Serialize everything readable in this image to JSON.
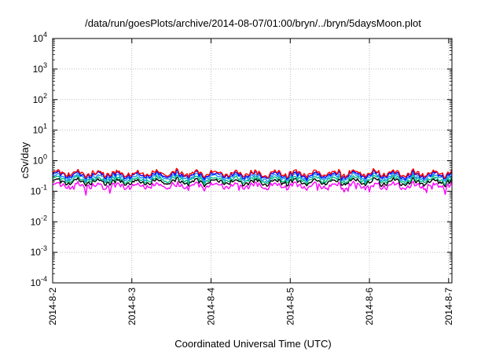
{
  "chart_data": {
    "type": "line",
    "title": "/data/run/goesPlots/archive/2014-08-07/01:00/bryn/../bryn/5daysMoon.plot",
    "xlabel": "Coordinated Universal Time (UTC)",
    "ylabel": "cSv/day",
    "y_scale": "log",
    "ylim": [
      0.0001,
      10000
    ],
    "y_ticks": [
      {
        "base": "10",
        "exp": "-4"
      },
      {
        "base": "10",
        "exp": "-3"
      },
      {
        "base": "10",
        "exp": "-2"
      },
      {
        "base": "10",
        "exp": "-1"
      },
      {
        "base": "10",
        "exp": "0"
      },
      {
        "base": "10",
        "exp": "1"
      },
      {
        "base": "10",
        "exp": "2"
      },
      {
        "base": "10",
        "exp": "3"
      },
      {
        "base": "10",
        "exp": "4"
      }
    ],
    "x_ticks": [
      "2014-8-2",
      "2014-8-3",
      "2014-8-4",
      "2014-8-5",
      "2014-8-6",
      "2014-8-7"
    ],
    "xlim": [
      "2014-08-02T00:00",
      "2014-08-07T01:00"
    ],
    "grid": true,
    "legend": "none",
    "series": [
      {
        "color": "#ff0000",
        "level": 0.38
      },
      {
        "color": "#0000ff",
        "level": 0.34
      },
      {
        "color": "#1e90ff",
        "level": 0.29
      },
      {
        "color": "#00c080",
        "level": 0.24
      },
      {
        "color": "#000000",
        "level": 0.2
      },
      {
        "color": "#ff00ff",
        "level": 0.15
      }
    ]
  }
}
